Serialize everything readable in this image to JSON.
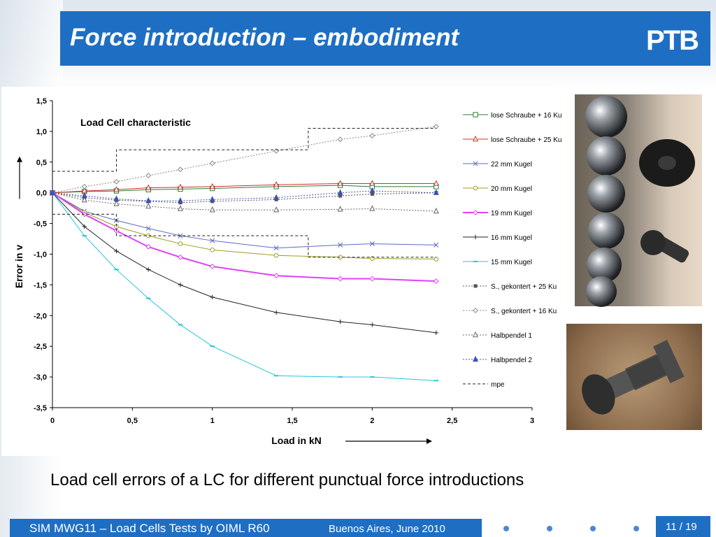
{
  "slide": {
    "title": "Force introduction – embodiment",
    "logo": "PTB",
    "caption": "Load cell errors of a LC for different punctual force introductions",
    "footer_left": "SIM MWG11 – Load Cells Tests by OIML R60",
    "footer_right": "Buenos Aires, June 2010",
    "page": "11 / 19",
    "colors": {
      "header": "#1e6fc4",
      "footer": "#1e6fc4",
      "dots": "#4f86cf"
    }
  },
  "chart_data": {
    "type": "line",
    "title": "Load Cell characteristic",
    "xlabel": "Load  in kN",
    "ylabel": "Error  in  v",
    "xlim": [
      0,
      3
    ],
    "ylim": [
      -3.5,
      1.5
    ],
    "xticks": [
      "0",
      "0,5",
      "1",
      "1,5",
      "2",
      "2,5",
      "3"
    ],
    "yticks": [
      "1,5",
      "1,0",
      "0,5",
      "0,0",
      "-0,5",
      "-1,0",
      "-1,5",
      "-2,0",
      "-2,5",
      "-3,0",
      "-3,5"
    ],
    "grid": false,
    "legend_position": "right",
    "series": [
      {
        "name": "lose Schraube + 16 Ku",
        "color": "#2e7d32",
        "marker": "square",
        "dash": false,
        "points": [
          [
            0,
            0
          ],
          [
            0,
            0
          ],
          [
            0.2,
            0.02
          ],
          [
            0.4,
            0.03
          ],
          [
            0.6,
            0.05
          ],
          [
            0.8,
            0.06
          ],
          [
            1,
            0.07
          ],
          [
            1.4,
            0.1
          ],
          [
            1.8,
            0.12
          ],
          [
            2,
            0.1
          ],
          [
            2.4,
            0.1
          ]
        ]
      },
      {
        "name": "lose Schraube + 25 Ku",
        "color": "#d32f2f",
        "marker": "triangle",
        "dash": false,
        "points": [
          [
            0,
            0
          ],
          [
            0,
            0
          ],
          [
            0.2,
            0.03
          ],
          [
            0.4,
            0.05
          ],
          [
            0.6,
            0.08
          ],
          [
            0.8,
            0.09
          ],
          [
            1,
            0.1
          ],
          [
            1.4,
            0.13
          ],
          [
            1.8,
            0.15
          ],
          [
            2,
            0.15
          ],
          [
            2.4,
            0.15
          ]
        ]
      },
      {
        "name": "22 mm Kugel",
        "color": "#5c6bc0",
        "marker": "x",
        "dash": false,
        "points": [
          [
            0,
            0
          ],
          [
            0,
            0
          ],
          [
            0.2,
            -0.3
          ],
          [
            0.4,
            -0.45
          ],
          [
            0.6,
            -0.58
          ],
          [
            0.8,
            -0.7
          ],
          [
            1,
            -0.78
          ],
          [
            1.4,
            -0.9
          ],
          [
            1.8,
            -0.85
          ],
          [
            2,
            -0.83
          ],
          [
            2.4,
            -0.85
          ]
        ]
      },
      {
        "name": "20 mm Kugel",
        "color": "#9e9d24",
        "marker": "circle",
        "dash": false,
        "points": [
          [
            0,
            0
          ],
          [
            0,
            0
          ],
          [
            0.2,
            -0.32
          ],
          [
            0.4,
            -0.55
          ],
          [
            0.6,
            -0.7
          ],
          [
            0.8,
            -0.83
          ],
          [
            1,
            -0.93
          ],
          [
            1.4,
            -1.02
          ],
          [
            1.8,
            -1.05
          ],
          [
            2,
            -1.07
          ],
          [
            2.4,
            -1.08
          ]
        ]
      },
      {
        "name": "19 mm Kugel",
        "color": "#e040fb",
        "marker": "diamond",
        "dash": false,
        "points": [
          [
            0,
            0
          ],
          [
            0,
            0
          ],
          [
            0.2,
            -0.35
          ],
          [
            0.4,
            -0.62
          ],
          [
            0.6,
            -0.88
          ],
          [
            0.8,
            -1.05
          ],
          [
            1,
            -1.2
          ],
          [
            1.4,
            -1.35
          ],
          [
            1.8,
            -1.4
          ],
          [
            2,
            -1.4
          ],
          [
            2.4,
            -1.44
          ]
        ]
      },
      {
        "name": "16 mm Kugel",
        "color": "#222222",
        "marker": "plus",
        "dash": false,
        "points": [
          [
            0,
            0
          ],
          [
            0,
            0
          ],
          [
            0.2,
            -0.55
          ],
          [
            0.4,
            -0.95
          ],
          [
            0.6,
            -1.25
          ],
          [
            0.8,
            -1.5
          ],
          [
            1,
            -1.7
          ],
          [
            1.4,
            -1.95
          ],
          [
            1.8,
            -2.1
          ],
          [
            2,
            -2.15
          ],
          [
            2.4,
            -2.28
          ]
        ]
      },
      {
        "name": "15 mm Kugel",
        "color": "#26c6da",
        "marker": "dash",
        "dash": false,
        "points": [
          [
            0,
            0
          ],
          [
            0,
            0
          ],
          [
            0.2,
            -0.7
          ],
          [
            0.4,
            -1.25
          ],
          [
            0.6,
            -1.72
          ],
          [
            0.8,
            -2.15
          ],
          [
            1,
            -2.5
          ],
          [
            1.4,
            -2.98
          ],
          [
            1.8,
            -3.0
          ],
          [
            2,
            -3.0
          ],
          [
            2.4,
            -3.06
          ]
        ]
      },
      {
        "name": "S., gekontert + 25 Ku",
        "color": "#555555",
        "marker": "smallsquare",
        "dash": true,
        "points": [
          [
            0,
            0
          ],
          [
            0,
            0
          ],
          [
            0.2,
            -0.08
          ],
          [
            0.4,
            -0.12
          ],
          [
            0.6,
            -0.14
          ],
          [
            0.8,
            -0.16
          ],
          [
            1,
            -0.14
          ],
          [
            1.4,
            -0.11
          ],
          [
            1.8,
            -0.05
          ],
          [
            2,
            -0.02
          ],
          [
            2.4,
            0.0
          ]
        ]
      },
      {
        "name": "S., gekontert + 16 Ku",
        "color": "#888888",
        "marker": "diamond",
        "dash": true,
        "points": [
          [
            0,
            0
          ],
          [
            0,
            0
          ],
          [
            0.2,
            0.1
          ],
          [
            0.4,
            0.18
          ],
          [
            0.6,
            0.28
          ],
          [
            0.8,
            0.38
          ],
          [
            1,
            0.48
          ],
          [
            1.4,
            0.68
          ],
          [
            1.8,
            0.87
          ],
          [
            2,
            0.93
          ],
          [
            2.4,
            1.08
          ]
        ]
      },
      {
        "name": "Halbpendel 1",
        "color": "#666666",
        "marker": "triangle",
        "dash": true,
        "points": [
          [
            0,
            0
          ],
          [
            0,
            0
          ],
          [
            0.2,
            -0.12
          ],
          [
            0.4,
            -0.18
          ],
          [
            0.6,
            -0.22
          ],
          [
            0.8,
            -0.26
          ],
          [
            1,
            -0.28
          ],
          [
            1.4,
            -0.28
          ],
          [
            1.8,
            -0.27
          ],
          [
            2,
            -0.26
          ],
          [
            2.4,
            -0.3
          ]
        ]
      },
      {
        "name": "Halbpendel 2",
        "color": "#3f51b5",
        "marker": "filledtriangle",
        "dash": true,
        "points": [
          [
            0,
            0
          ],
          [
            0,
            0
          ],
          [
            0.2,
            -0.05
          ],
          [
            0.4,
            -0.1
          ],
          [
            0.6,
            -0.13
          ],
          [
            0.8,
            -0.13
          ],
          [
            1,
            -0.11
          ],
          [
            1.4,
            -0.08
          ],
          [
            1.8,
            0.0
          ],
          [
            2,
            0.03
          ],
          [
            2.4,
            0.0
          ]
        ]
      },
      {
        "name": "mpe",
        "color": "#222222",
        "marker": "none",
        "dash": true,
        "step": true,
        "points": [
          [
            0,
            0.35
          ],
          [
            0.4,
            0.35
          ],
          [
            0.4,
            0.7
          ],
          [
            1.6,
            0.7
          ],
          [
            1.6,
            1.05
          ],
          [
            2.4,
            1.05
          ]
        ]
      },
      {
        "name": "",
        "color": "#222222",
        "marker": "none",
        "dash": true,
        "step": true,
        "legend": false,
        "points": [
          [
            0,
            -0.35
          ],
          [
            0.4,
            -0.35
          ],
          [
            0.4,
            -0.7
          ],
          [
            1.6,
            -0.7
          ],
          [
            1.6,
            -1.05
          ],
          [
            2.4,
            -1.05
          ]
        ]
      }
    ]
  }
}
